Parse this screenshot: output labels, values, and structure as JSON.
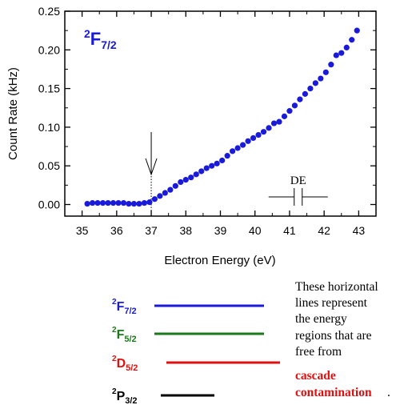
{
  "chart_data": {
    "type": "scatter",
    "xlabel": "Electron Energy (eV)",
    "ylabel": "Count Rate (kHz)",
    "xlim": [
      34.5,
      43.5
    ],
    "ylim": [
      -0.015,
      0.25
    ],
    "x_ticks": [
      "35",
      "36",
      "37",
      "38",
      "39",
      "40",
      "41",
      "42",
      "43"
    ],
    "y_ticks": [
      "0.00",
      "0.05",
      "0.10",
      "0.15",
      "0.20",
      "0.25"
    ],
    "grid": false,
    "marker_color": "#1a1adb",
    "series": [
      {
        "x": [
          35.15,
          35.3,
          35.45,
          35.6,
          35.75,
          35.9,
          36.05,
          36.2,
          36.35,
          36.5,
          36.65,
          36.8,
          36.95,
          37.1,
          37.25,
          37.4,
          37.55,
          37.7,
          37.85,
          38.0,
          38.15,
          38.3,
          38.45,
          38.6,
          38.75,
          38.9,
          39.05,
          39.2,
          39.35,
          39.5,
          39.65,
          39.8,
          39.95,
          40.1,
          40.25,
          40.4,
          40.55,
          40.7,
          40.85,
          41.0,
          41.15,
          41.3,
          41.45,
          41.6,
          41.75,
          41.9,
          42.05,
          42.2,
          42.35,
          42.5,
          42.65,
          42.8,
          42.95
        ],
        "y": [
          0.001,
          0.002,
          0.002,
          0.002,
          0.002,
          0.002,
          0.002,
          0.002,
          0.001,
          0.001,
          0.001,
          0.002,
          0.003,
          0.007,
          0.011,
          0.015,
          0.019,
          0.024,
          0.029,
          0.032,
          0.035,
          0.039,
          0.043,
          0.047,
          0.05,
          0.053,
          0.057,
          0.063,
          0.069,
          0.073,
          0.077,
          0.082,
          0.086,
          0.09,
          0.094,
          0.099,
          0.105,
          0.107,
          0.114,
          0.121,
          0.128,
          0.136,
          0.143,
          0.15,
          0.157,
          0.163,
          0.171,
          0.181,
          0.193,
          0.196,
          0.203,
          0.213,
          0.225
        ]
      }
    ],
    "annotations": {
      "state_label": {
        "main": "F",
        "sup": "2",
        "sub": "7/2",
        "color": "#1a1adb"
      },
      "arrow_x": 37.0,
      "delta_label": "DE",
      "delta_center_x": 41.25
    }
  },
  "legend": {
    "items": [
      {
        "sup": "2",
        "main": "F",
        "sub": "7/2",
        "color": "#1a1adb"
      },
      {
        "sup": "2",
        "main": "F",
        "sub": "5/2",
        "color": "#1a7a1a"
      },
      {
        "sup": "2",
        "main": "D",
        "sub": "5/2",
        "color": "#e01010"
      },
      {
        "sup": "2",
        "main": "P",
        "sub": "3/2",
        "color": "#000000"
      }
    ]
  },
  "note": {
    "lines": [
      "These horizontal",
      "lines represent",
      "the energy",
      "regions that are",
      "free from"
    ],
    "highlight": [
      "cascade",
      "contamination"
    ],
    "highlight_color": "#e01010",
    "end": "."
  }
}
